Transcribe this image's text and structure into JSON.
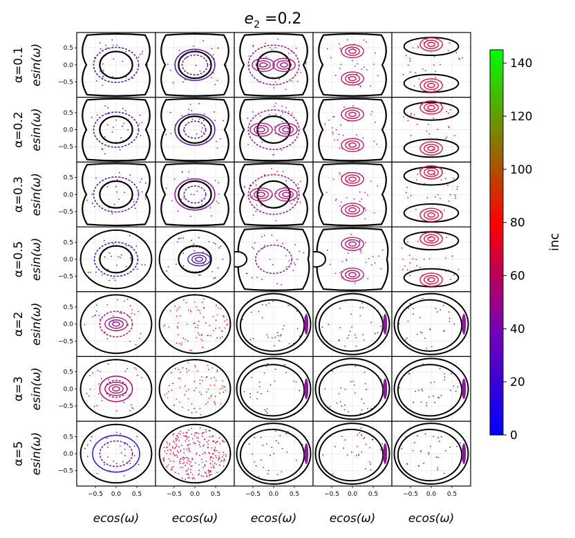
{
  "chart_data": {
    "type": "scatter",
    "title_base": "e",
    "title_sub": "2",
    "title_rest": " =0.2",
    "row_labels": [
      "α=0.1",
      "α=0.2",
      "α=0.3",
      "α=0.5",
      "α=2",
      "α=3",
      "α=5"
    ],
    "ylabel": "esin(ω)",
    "xlabel": "ecos(ω)",
    "x_ticks": [
      "−0.5",
      "0.0",
      "0.5"
    ],
    "y_ticks": [
      "0.5",
      "0.0",
      "−0.5"
    ],
    "x_tick_values": [
      -0.5,
      0.0,
      0.5
    ],
    "y_tick_values": [
      0.5,
      0.0,
      -0.5
    ],
    "xlim": [
      -0.95,
      0.95
    ],
    "ylim": [
      -0.95,
      0.95
    ],
    "grid": true,
    "n_cols": 5,
    "colorbar": {
      "label": "inc",
      "min": 0,
      "max": 145,
      "ticks": [
        "0",
        "20",
        "40",
        "60",
        "80",
        "100",
        "120",
        "140"
      ],
      "tick_values": [
        0,
        20,
        40,
        60,
        80,
        100,
        120,
        140
      ],
      "colors": [
        "#0000ff",
        "#7a00b0",
        "#ff0000",
        "#00ff00"
      ]
    },
    "panels": [
      {
        "row": 0,
        "col": 0,
        "shape": "hourglass",
        "islands": [],
        "circulating": [
          0.62
        ],
        "colors": [
          "#5a1aa0",
          "#3a20c8"
        ]
      },
      {
        "row": 0,
        "col": 1,
        "shape": "hourglass",
        "islands": [],
        "circulating": [
          0.35,
          0.55
        ],
        "colors": [
          "#7a18a8",
          "#5a1aa0"
        ]
      },
      {
        "row": 0,
        "col": 2,
        "shape": "hourglass",
        "islands": [
          [
            -0.25,
            0
          ],
          [
            0.25,
            0
          ]
        ],
        "circulating": [
          0.7
        ],
        "colors": [
          "#9a1a8a",
          "#b01a6a"
        ]
      },
      {
        "row": 0,
        "col": 3,
        "shape": "hourglass",
        "islands": [
          [
            0,
            0.4
          ],
          [
            0,
            -0.4
          ]
        ],
        "circulating": [],
        "colors": [
          "#c01a5a",
          "#b81870"
        ]
      },
      {
        "row": 0,
        "col": 4,
        "shape": "twolobes",
        "islands": [
          [
            0,
            0.6
          ],
          [
            0,
            -0.6
          ]
        ],
        "circulating": [],
        "colors": [
          "#e0103a",
          "#c01a5a"
        ]
      },
      {
        "row": 1,
        "col": 0,
        "shape": "hourglass",
        "islands": [],
        "circulating": [
          0.62
        ],
        "colors": [
          "#5a1aa0",
          "#3a20c8"
        ]
      },
      {
        "row": 1,
        "col": 1,
        "shape": "hourglass",
        "islands": [],
        "circulating": [
          0.3,
          0.55
        ],
        "colors": [
          "#6a18a8",
          "#5a1aa0"
        ]
      },
      {
        "row": 1,
        "col": 2,
        "shape": "hourglass",
        "islands": [
          [
            -0.3,
            0
          ],
          [
            0.3,
            0
          ]
        ],
        "circulating": [
          0.7
        ],
        "colors": [
          "#9a1a8a",
          "#b01a6a"
        ]
      },
      {
        "row": 1,
        "col": 3,
        "shape": "hourglass",
        "islands": [
          [
            0,
            0.45
          ],
          [
            0,
            -0.45
          ]
        ],
        "circulating": [],
        "colors": [
          "#c01a5a",
          "#b81870"
        ]
      },
      {
        "row": 1,
        "col": 4,
        "shape": "twolobes",
        "islands": [
          [
            0,
            0.65
          ],
          [
            0,
            -0.55
          ]
        ],
        "circulating": [],
        "colors": [
          "#e0103a",
          "#c01a5a"
        ]
      },
      {
        "row": 2,
        "col": 0,
        "shape": "hourglass",
        "islands": [],
        "circulating": [
          0.62
        ],
        "colors": [
          "#5a1aa0",
          "#3a20c8"
        ]
      },
      {
        "row": 2,
        "col": 1,
        "shape": "hourglass",
        "islands": [],
        "circulating": [
          0.3,
          0.55
        ],
        "colors": [
          "#7a18a8",
          "#8a1a98"
        ]
      },
      {
        "row": 2,
        "col": 2,
        "shape": "hourglass",
        "islands": [
          [
            -0.3,
            0
          ],
          [
            0.3,
            0
          ]
        ],
        "circulating": [
          0.7
        ],
        "colors": [
          "#a01a80",
          "#b01a6a"
        ]
      },
      {
        "row": 2,
        "col": 3,
        "shape": "hourglass",
        "islands": [
          [
            0,
            0.45
          ],
          [
            0,
            -0.45
          ]
        ],
        "circulating": [],
        "colors": [
          "#c01a5a",
          "#b81870"
        ]
      },
      {
        "row": 2,
        "col": 4,
        "shape": "twolobes",
        "islands": [
          [
            0,
            0.65
          ],
          [
            0,
            -0.6
          ]
        ],
        "circulating": [],
        "colors": [
          "#e0103a",
          "#c01a5a"
        ]
      },
      {
        "row": 3,
        "col": 0,
        "shape": "oval",
        "islands": [],
        "circulating": [
          0.6
        ],
        "colors": [
          "#4020c0",
          "#3a20c8"
        ]
      },
      {
        "row": 3,
        "col": 1,
        "shape": "oval",
        "islands": [
          [
            0.1,
            0
          ]
        ],
        "circulating": [
          0.45
        ],
        "colors": [
          "#4a1ab8",
          "#5a1aa0"
        ]
      },
      {
        "row": 3,
        "col": 2,
        "shape": "notch",
        "islands": [],
        "circulating": [
          0.5
        ],
        "colors": [
          "#8a1a98",
          "#9a1a8a"
        ]
      },
      {
        "row": 3,
        "col": 3,
        "shape": "notch",
        "islands": [
          [
            0,
            0.45
          ],
          [
            0,
            -0.45
          ]
        ],
        "circulating": [],
        "colors": [
          "#c01a5a",
          "#8a1a98"
        ]
      },
      {
        "row": 3,
        "col": 4,
        "shape": "twolobes",
        "islands": [
          [
            0,
            0.6
          ],
          [
            0,
            -0.6
          ]
        ],
        "circulating": [],
        "colors": [
          "#e0103a",
          "#c01a5a"
        ]
      },
      {
        "row": 4,
        "col": 0,
        "shape": "circle",
        "islands": [
          [
            0,
            0
          ]
        ],
        "circulating": [
          0.45
        ],
        "colors": [
          "#b01a6a",
          "#7a18a8"
        ]
      },
      {
        "row": 4,
        "col": 1,
        "shape": "circle",
        "islands": [],
        "circulating": [],
        "colors": [
          "#ff3010",
          "#7a18a8"
        ]
      },
      {
        "row": 4,
        "col": 2,
        "shape": "ring",
        "islands": [],
        "circulating": [],
        "colors": [
          "#8a1a98",
          "#5a1aa0"
        ]
      },
      {
        "row": 4,
        "col": 3,
        "shape": "ring",
        "islands": [],
        "circulating": [],
        "colors": [
          "#8a1a98",
          "#5a1aa0"
        ]
      },
      {
        "row": 4,
        "col": 4,
        "shape": "ring",
        "islands": [],
        "circulating": [],
        "colors": [
          "#8a1a98",
          "#5a1aa0"
        ]
      },
      {
        "row": 5,
        "col": 0,
        "shape": "circle",
        "islands": [
          [
            0,
            0
          ]
        ],
        "circulating": [
          0.3,
          0.45
        ],
        "colors": [
          "#a01a80",
          "#b01a6a"
        ]
      },
      {
        "row": 5,
        "col": 1,
        "shape": "circle",
        "islands": [],
        "circulating": [],
        "colors": [
          "#ff3010",
          "#7a18a8"
        ]
      },
      {
        "row": 5,
        "col": 2,
        "shape": "ring",
        "islands": [],
        "circulating": [],
        "colors": [
          "#8a1a98",
          "#5a1aa0"
        ]
      },
      {
        "row": 5,
        "col": 3,
        "shape": "ring",
        "islands": [],
        "circulating": [],
        "colors": [
          "#8a1a98",
          "#5a1aa0"
        ]
      },
      {
        "row": 5,
        "col": 4,
        "shape": "ring",
        "islands": [],
        "circulating": [],
        "colors": [
          "#8a1a98",
          "#5a1aa0"
        ]
      },
      {
        "row": 6,
        "col": 0,
        "shape": "circle",
        "islands": [],
        "circulating": [
          0.45,
          0.65
        ],
        "colors": [
          "#7a18a8",
          "#3a20c8"
        ]
      },
      {
        "row": 6,
        "col": 1,
        "shape": "circle",
        "islands": [],
        "circulating": [],
        "colors": [
          "#e0103a",
          "#c01a5a"
        ]
      },
      {
        "row": 6,
        "col": 2,
        "shape": "ring",
        "islands": [],
        "circulating": [],
        "colors": [
          "#8a1a98",
          "#5a1aa0"
        ]
      },
      {
        "row": 6,
        "col": 3,
        "shape": "ring",
        "islands": [],
        "circulating": [],
        "colors": [
          "#8a1a98",
          "#5a1aa0"
        ]
      },
      {
        "row": 6,
        "col": 4,
        "shape": "ring",
        "islands": [],
        "circulating": [],
        "colors": [
          "#8a1a98",
          "#5a1aa0"
        ]
      }
    ]
  }
}
